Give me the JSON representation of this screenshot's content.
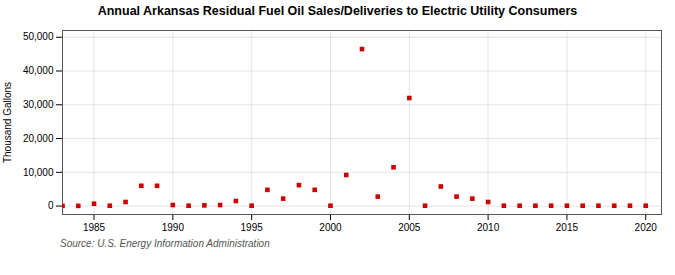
{
  "chart_data": {
    "type": "scatter",
    "title": "Annual Arkansas Residual Fuel Oil Sales/Deliveries to Electric Utility Consumers",
    "y_label": "Thousand Gallons",
    "annotations": [
      "Source: U.S. Energy Information Administration"
    ],
    "x": [
      1983,
      1984,
      1985,
      1986,
      1987,
      1988,
      1989,
      1990,
      1991,
      1992,
      1993,
      1994,
      1995,
      1996,
      1997,
      1998,
      1999,
      2000,
      2001,
      2002,
      2003,
      2004,
      2005,
      2006,
      2007,
      2008,
      2009,
      2010,
      2011,
      2012,
      2013,
      2014,
      2015,
      2016,
      2017,
      2018,
      2019,
      2020
    ],
    "values": [
      50,
      50,
      700,
      100,
      1200,
      6000,
      6000,
      300,
      100,
      200,
      300,
      1500,
      100,
      4800,
      2200,
      6200,
      4800,
      100,
      9200,
      46500,
      2800,
      11500,
      32000,
      100,
      5800,
      2800,
      2200,
      1200,
      100,
      100,
      100,
      100,
      100,
      100,
      100,
      100,
      100,
      100
    ],
    "color": "#cc0000",
    "marker": "square",
    "xlim": [
      1983,
      2021
    ],
    "xticks": [
      1985,
      1990,
      1995,
      2000,
      2005,
      2010,
      2015,
      2020
    ],
    "ylim": [
      -2500,
      52000
    ],
    "yticks": [
      0,
      {
        "value": 10000,
        "label": "10,000"
      },
      {
        "value": 20000,
        "label": "20,000"
      },
      {
        "value": 30000,
        "label": "30,000"
      },
      {
        "value": 40000,
        "label": "40,000"
      },
      {
        "value": 50000,
        "label": "50,000"
      }
    ],
    "grid": true
  }
}
